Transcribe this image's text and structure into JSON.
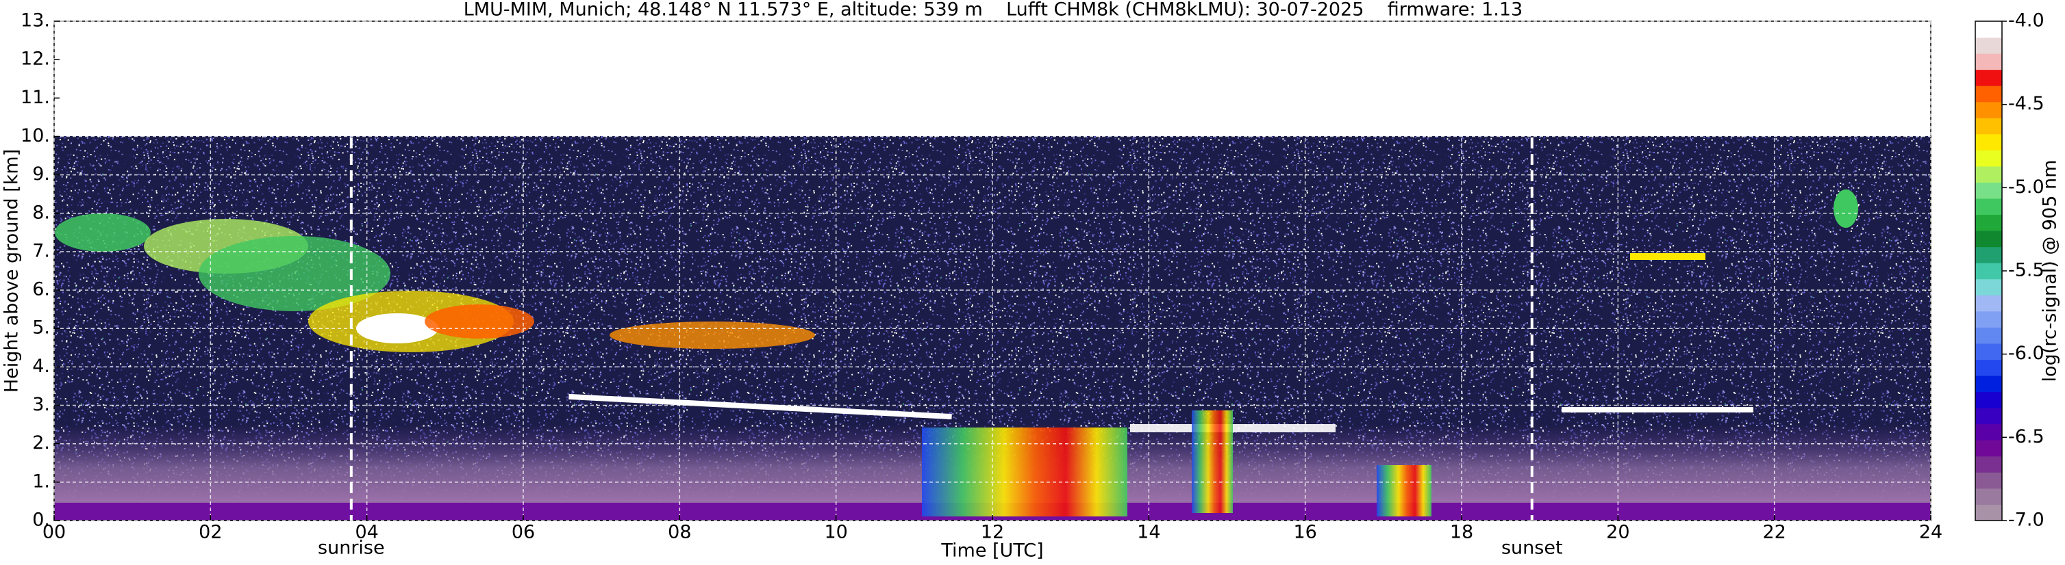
{
  "chart_data": {
    "type": "heatmap",
    "title": "LMU-MIM, Munich; 48.148° N 11.573° E, altitude: 539 m    Lufft CHM8k (CHM8kLMU): 30-07-2025    firmware: 1.13",
    "xlabel": "Time [UTC]",
    "ylabel": "Height above ground [km]",
    "colorbar_label": "log(rc-signal) @ 905 nm",
    "xlim": [
      0,
      24
    ],
    "xticks": [
      {
        "value": 0,
        "label": "00"
      },
      {
        "value": 2,
        "label": "02"
      },
      {
        "value": 4,
        "label": "04"
      },
      {
        "value": 6,
        "label": "06"
      },
      {
        "value": 8,
        "label": "08"
      },
      10,
      12,
      14,
      16,
      18,
      20,
      22,
      24
    ],
    "ylim": [
      0,
      13
    ],
    "yticks": [
      {
        "value": 0,
        "label": "0."
      },
      {
        "value": 1,
        "label": "1."
      },
      {
        "value": 2,
        "label": "2."
      },
      {
        "value": 3,
        "label": "3."
      },
      {
        "value": 4,
        "label": "4."
      },
      {
        "value": 5,
        "label": "5."
      },
      {
        "value": 6,
        "label": "6."
      },
      {
        "value": 7,
        "label": "7."
      },
      {
        "value": 8,
        "label": "8."
      },
      {
        "value": 9,
        "label": "9."
      },
      {
        "value": 10,
        "label": "10."
      },
      {
        "value": 11,
        "label": "11."
      },
      {
        "value": 12,
        "label": "12."
      },
      {
        "value": 13,
        "label": "13."
      }
    ],
    "grid": true,
    "clim": [
      -7,
      -4
    ],
    "cticks": [
      {
        "value": -7,
        "label": "-7.0"
      },
      -6.5,
      {
        "value": -6,
        "label": "-6.0"
      },
      -5.5,
      {
        "value": -5,
        "label": "-5.0"
      },
      -4.5,
      {
        "value": -4,
        "label": "-4.0"
      }
    ],
    "colormap": [
      "#a892a8",
      "#9a7a9e",
      "#8a5a94",
      "#7a3090",
      "#700898",
      "#5a00a8",
      "#3800c0",
      "#1800d0",
      "#0020e0",
      "#2448f0",
      "#4068f0",
      "#6088f0",
      "#80a0f4",
      "#a0b8f4",
      "#7cd8d8",
      "#40c8a8",
      "#20a070",
      "#108830",
      "#20a838",
      "#40c860",
      "#78e088",
      "#b0f060",
      "#e8ff20",
      "#ffe800",
      "#ffc000",
      "#ff9000",
      "#ff6000",
      "#f01010",
      "#f4b8b8",
      "#e8d8d8",
      "#ffffff"
    ],
    "markers": [
      {
        "label": "sunrise",
        "x": 3.8
      },
      {
        "label": "sunset",
        "x": 18.9
      }
    ]
  }
}
